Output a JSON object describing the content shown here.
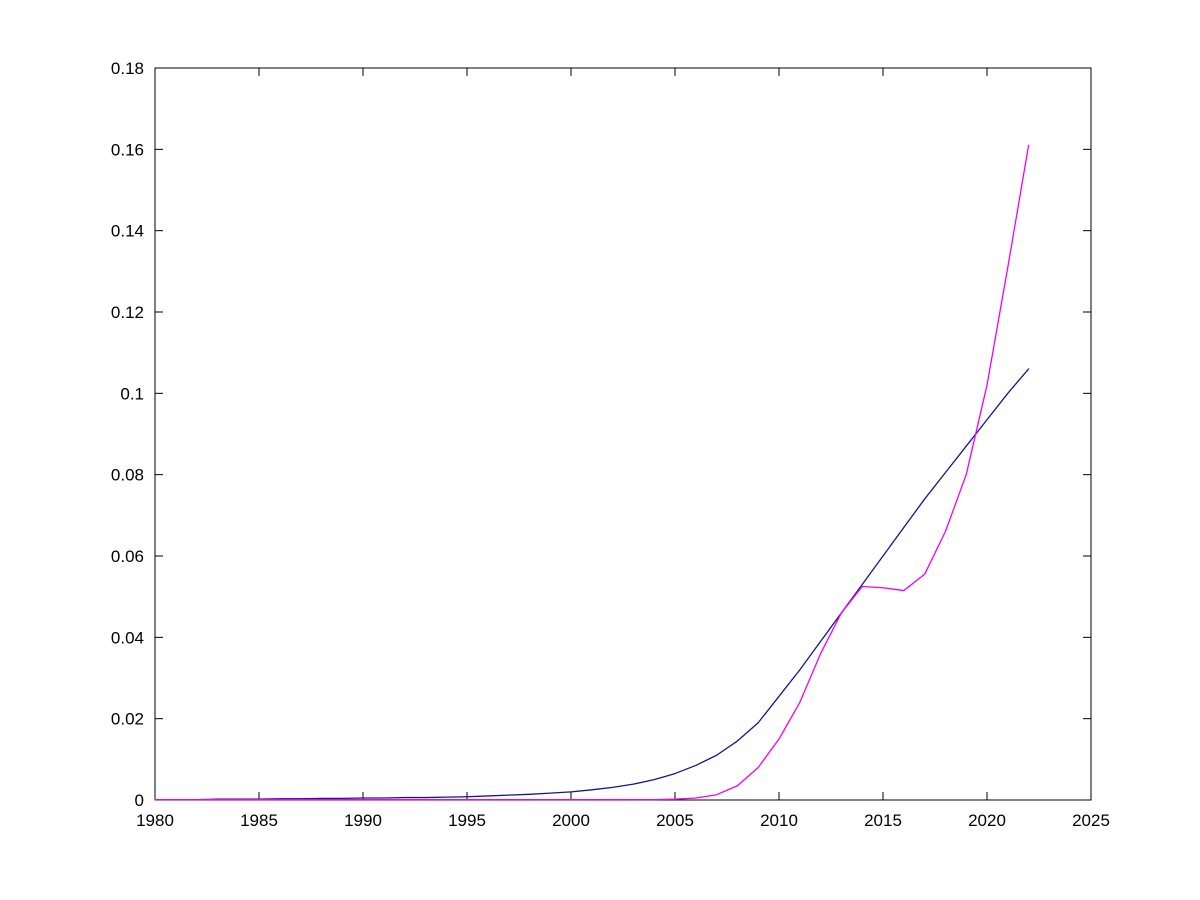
{
  "figure": {
    "background": "#ffffff",
    "axis_color": "#000000"
  },
  "chart_data": {
    "type": "line",
    "title": "",
    "xlabel": "",
    "ylabel": "",
    "grid": false,
    "legend": "none",
    "x_range": [
      1980,
      2025
    ],
    "y_range": [
      0,
      0.18
    ],
    "x_ticks": [
      1980,
      1985,
      1990,
      1995,
      2000,
      2005,
      2010,
      2015,
      2020,
      2025
    ],
    "x_tick_labels": [
      "1980",
      "1985",
      "1990",
      "1995",
      "2000",
      "2005",
      "2010",
      "2015",
      "2020",
      "2025"
    ],
    "y_ticks": [
      0,
      0.02,
      0.04,
      0.06,
      0.08,
      0.1,
      0.12,
      0.14,
      0.16,
      0.18
    ],
    "y_tick_labels": [
      "0",
      "0.02",
      "0.04",
      "0.06",
      "0.08",
      "0.1",
      "0.12",
      "0.14",
      "0.16",
      "0.18"
    ],
    "x": [
      1980,
      1981,
      1982,
      1983,
      1984,
      1985,
      1986,
      1987,
      1988,
      1989,
      1990,
      1991,
      1992,
      1993,
      1994,
      1995,
      1996,
      1997,
      1998,
      1999,
      2000,
      2001,
      2002,
      2003,
      2004,
      2005,
      2006,
      2007,
      2008,
      2009,
      2010,
      2011,
      2012,
      2013,
      2014,
      2015,
      2016,
      2017,
      2018,
      2019,
      2020,
      2021,
      2022
    ],
    "series": [
      {
        "name": "blue-smooth-curve",
        "color": "#16168c",
        "width": 1.3,
        "values": [
          0.0001,
          0.0001,
          0.0001,
          0.0002,
          0.0002,
          0.0002,
          0.0003,
          0.0003,
          0.0004,
          0.0004,
          0.0005,
          0.0005,
          0.0006,
          0.0006,
          0.0007,
          0.0008,
          0.001,
          0.0012,
          0.0014,
          0.0017,
          0.002,
          0.0025,
          0.0031,
          0.0039,
          0.005,
          0.0065,
          0.0085,
          0.011,
          0.0145,
          0.019,
          0.0255,
          0.032,
          0.039,
          0.046,
          0.053,
          0.06,
          0.067,
          0.074,
          0.0805,
          0.087,
          0.0935,
          0.1,
          0.106
        ]
      },
      {
        "name": "magenta-data-curve",
        "color": "#f400f4",
        "width": 1.3,
        "values": [
          0.0001,
          0.0001,
          0.0001,
          0.0001,
          0.0001,
          0.0001,
          0.0001,
          0.0001,
          0.0001,
          0.0001,
          0.0001,
          0.0001,
          0.0001,
          0.0001,
          0.0001,
          0.0001,
          0.0001,
          0.0001,
          0.0001,
          0.0001,
          0.0001,
          0.0001,
          0.0001,
          0.0001,
          0.0001,
          0.0002,
          0.0005,
          0.0013,
          0.0035,
          0.008,
          0.015,
          0.024,
          0.036,
          0.046,
          0.0525,
          0.0522,
          0.0515,
          0.0555,
          0.066,
          0.08,
          0.102,
          0.131,
          0.161
        ]
      }
    ]
  }
}
